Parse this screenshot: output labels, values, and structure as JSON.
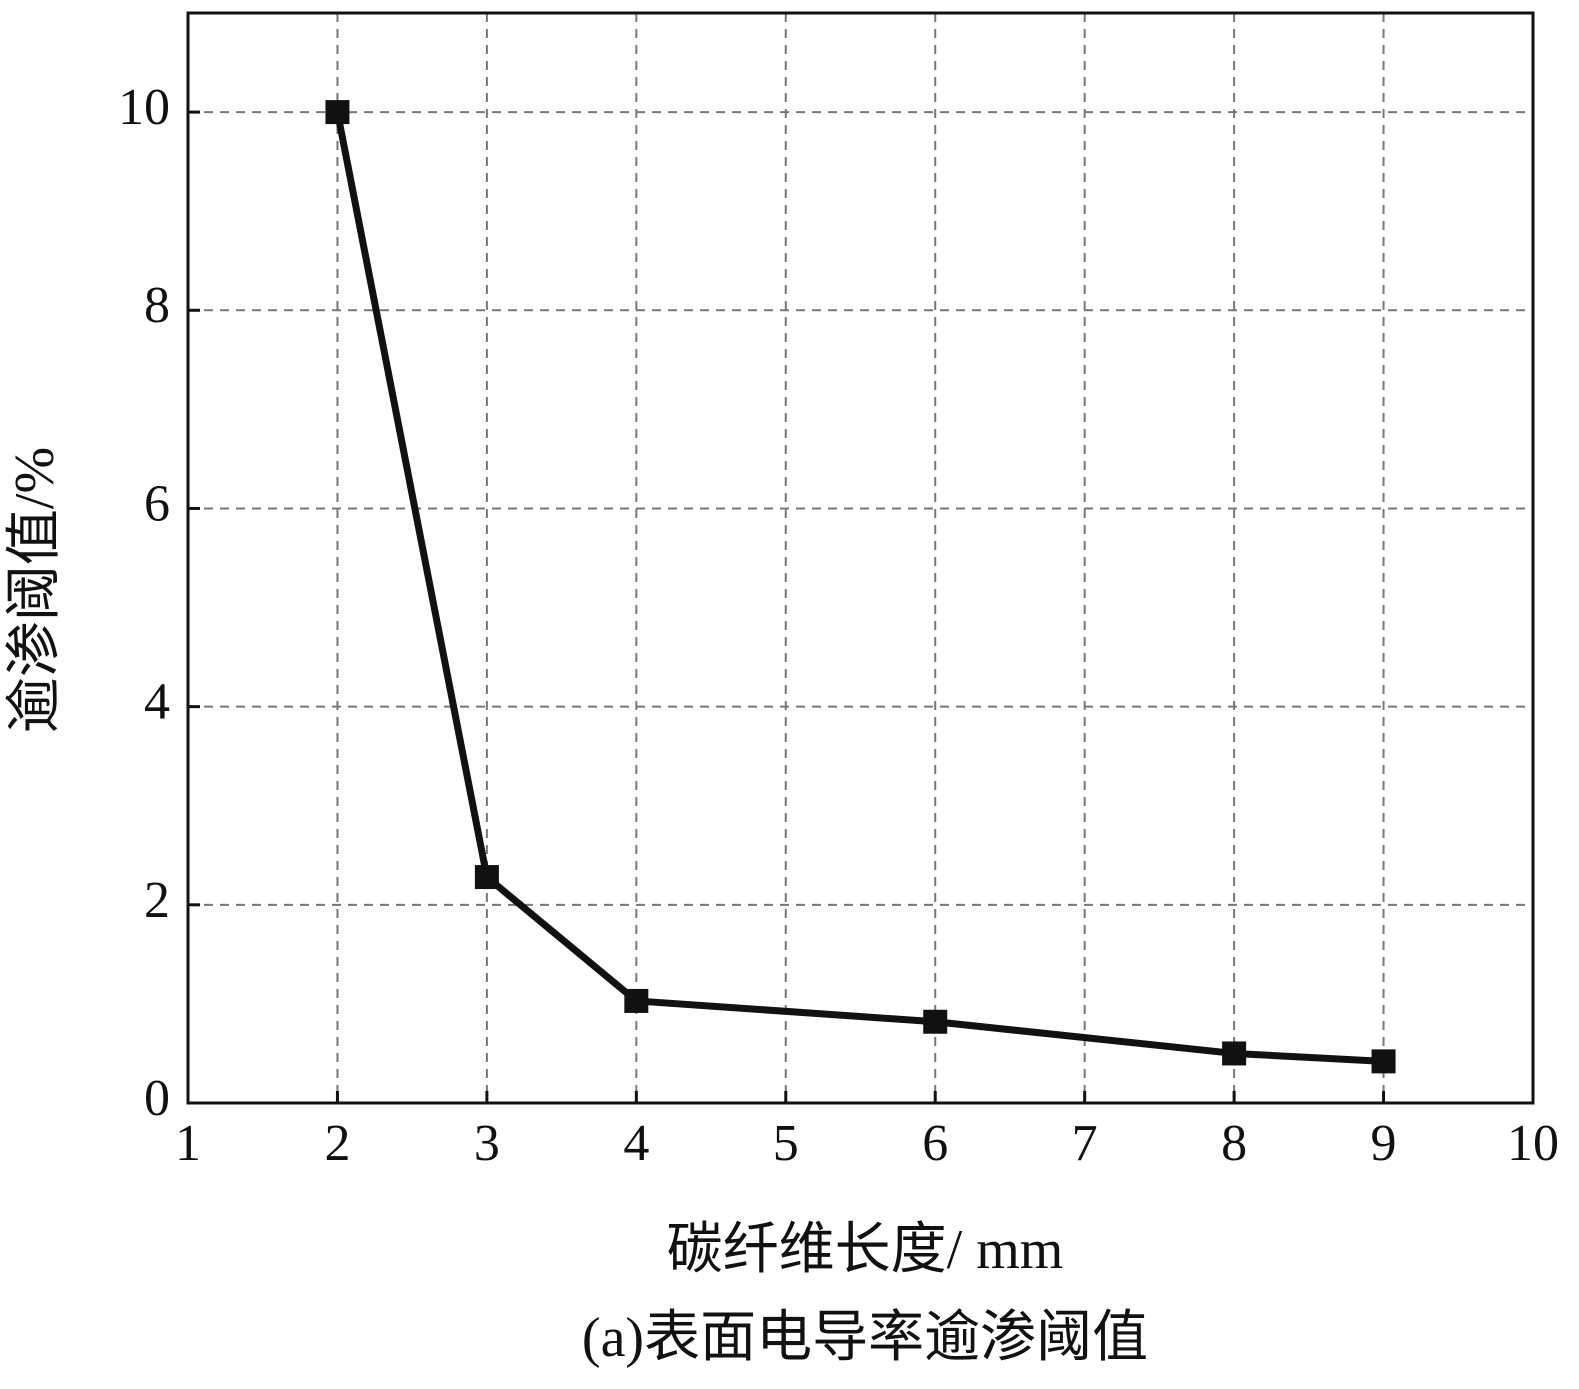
{
  "chart_data": {
    "type": "line",
    "caption": "(a)表面电导率逾渗阈值",
    "x_label": "碳纤维长度/ mm",
    "y_label": "逾渗阈值/%",
    "x": [
      2,
      3,
      4,
      6,
      8,
      9
    ],
    "series": [
      {
        "color": "#111111",
        "values": [
          10,
          2.28,
          1.03,
          0.82,
          0.5,
          0.42
        ]
      }
    ],
    "xlim": [
      1,
      10
    ],
    "xticks": [
      1,
      2,
      3,
      4,
      5,
      6,
      7,
      8,
      9,
      10
    ],
    "ylim": [
      0,
      11
    ],
    "yticks": [
      0,
      2,
      4,
      6,
      8,
      10
    ],
    "grid": true
  }
}
